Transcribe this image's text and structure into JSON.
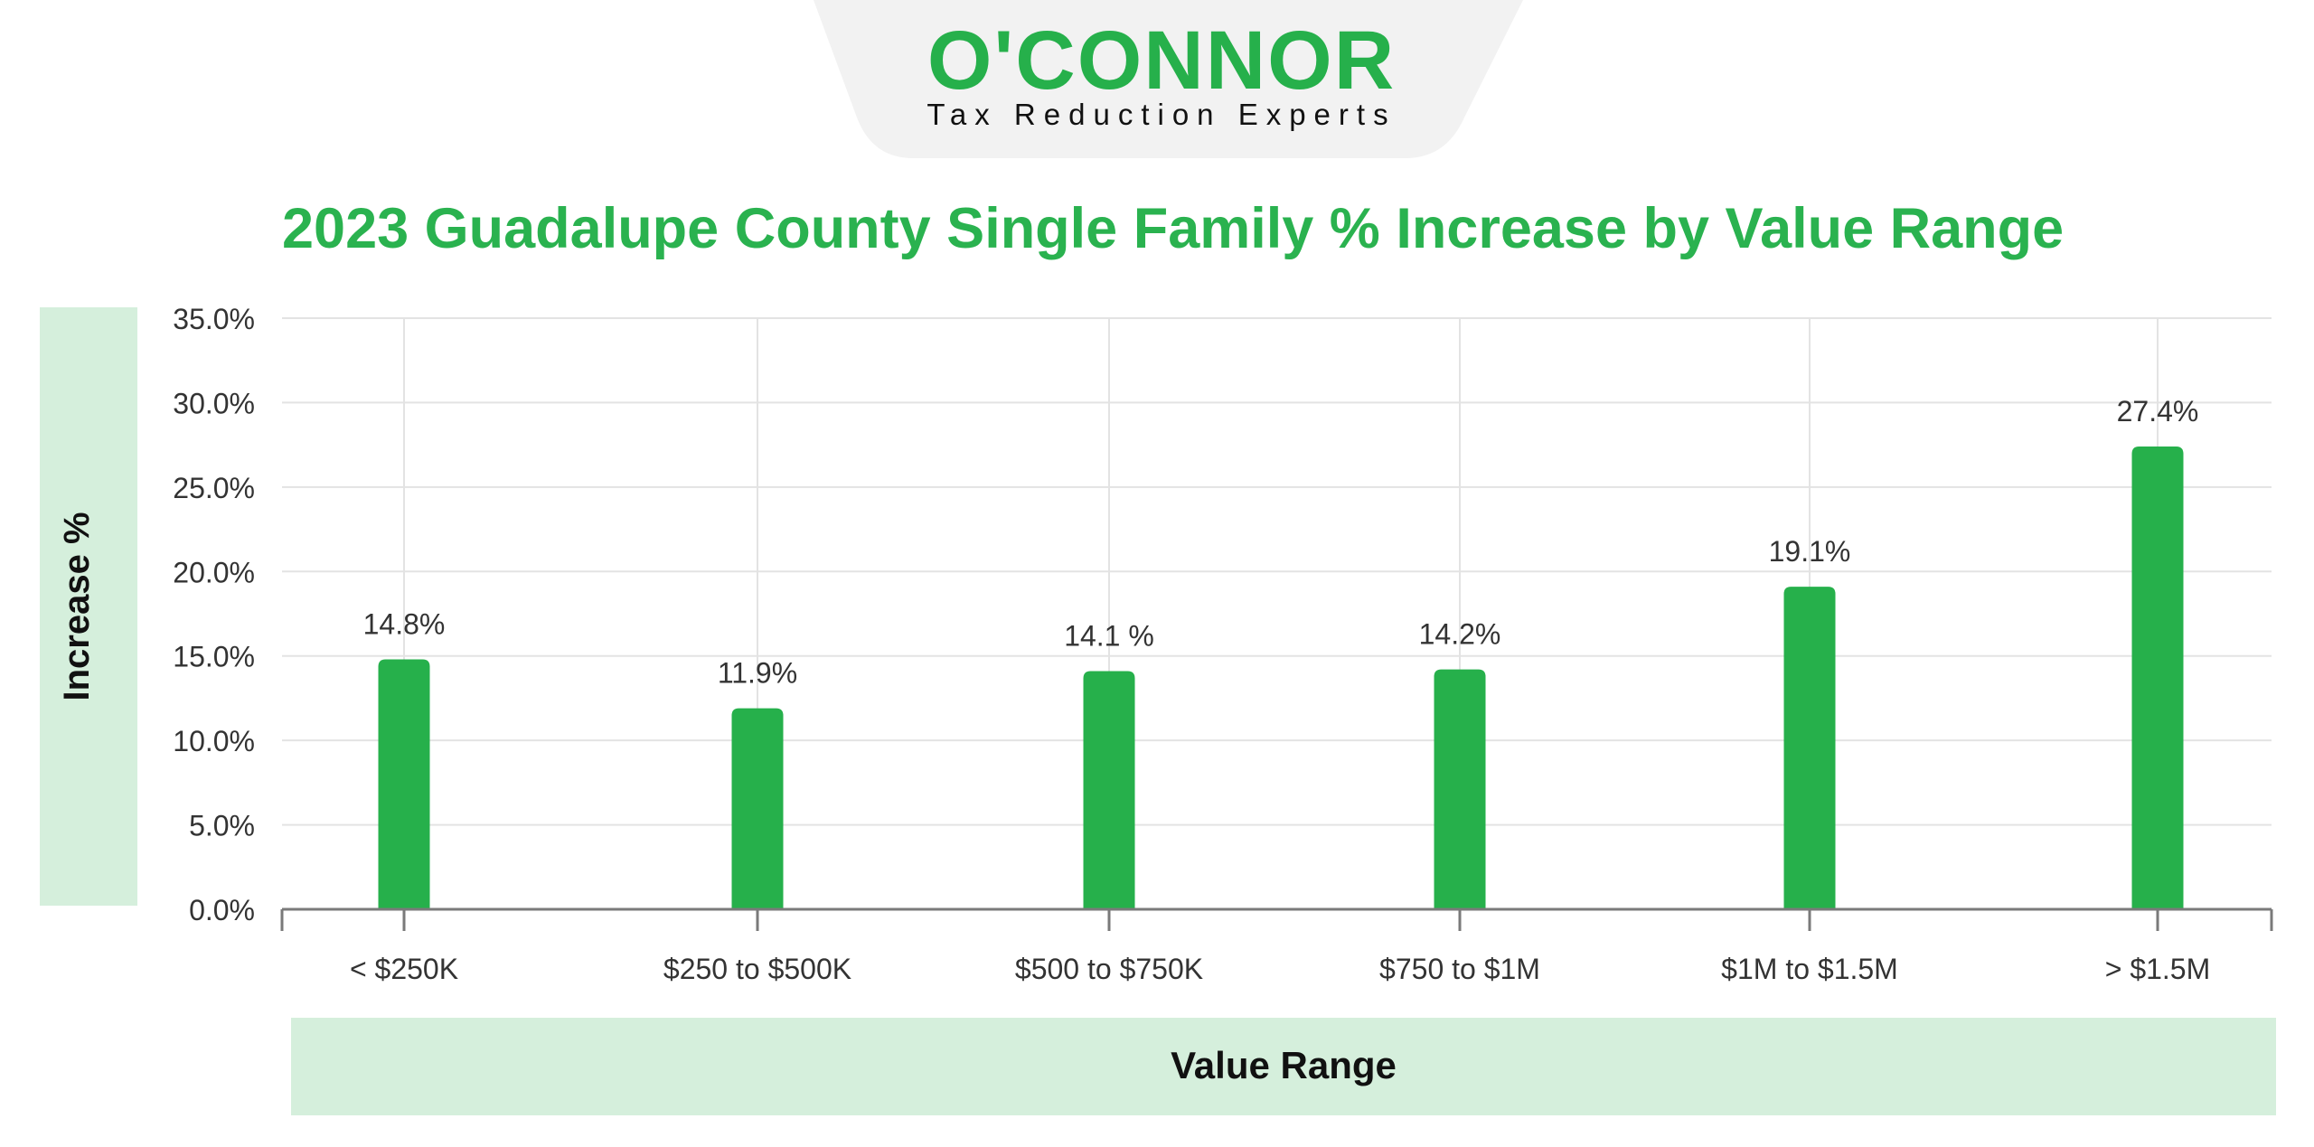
{
  "brand": {
    "name": "O'CONNOR",
    "tagline": "Tax Reduction Experts",
    "color": "#26b04b"
  },
  "chart_data": {
    "type": "bar",
    "title": "2023 Guadalupe County Single Family % Increase by Value Range",
    "xlabel": "Value Range",
    "ylabel": "Increase %",
    "categories": [
      "< $250K",
      "$250 to $500K",
      "$500 to $750K",
      "$750 to $1M",
      "$1M to $1.5M",
      "> $1.5M"
    ],
    "values": [
      14.8,
      11.9,
      14.1,
      14.2,
      19.1,
      27.4
    ],
    "data_labels": [
      "14.8%",
      "11.9%",
      "14.1 %",
      "14.2%",
      "19.1%",
      "27.4%"
    ],
    "ylim": [
      0,
      35
    ],
    "yticks": [
      "0.0%",
      "5.0%",
      "10.0%",
      "15.0%",
      "20.0%",
      "25.0%",
      "30.0%",
      "35.0%"
    ],
    "grid": true,
    "legend": "none",
    "colors": {
      "bar": "#26b04b",
      "title": "#2ab24f",
      "label_band": "#d5efdc",
      "grid": "#e3e3e3",
      "axis": "#7a7a7a",
      "text": "#333333"
    }
  }
}
